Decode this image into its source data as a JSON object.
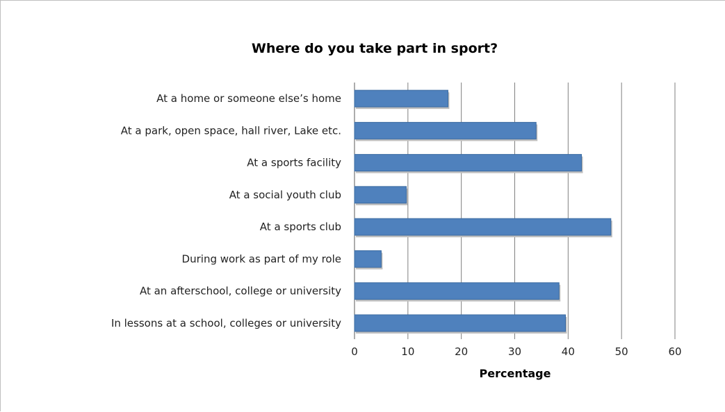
{
  "chart_data": {
    "type": "bar",
    "orientation": "horizontal",
    "title": "Where do you take part in sport?",
    "xlabel": "Percentage",
    "ylabel": "",
    "categories": [
      "At a home or someone else’s home",
      "At a park, open space, hall river, Lake etc.",
      "At a sports facility",
      "At a social youth club",
      "At a sports club",
      "During work as part of my role",
      "At an afterschool, college or university",
      "In lessons at a school, colleges or university"
    ],
    "values": [
      17.5,
      34,
      42.5,
      9.7,
      48,
      5,
      38.3,
      39.5
    ],
    "xlim": [
      0,
      60
    ],
    "xticks": [
      "0",
      "10",
      "20",
      "30",
      "40",
      "50",
      "60"
    ],
    "grid": "vertical",
    "legend": "none",
    "colors": {
      "bar": "#4f81bd",
      "bar_edge": "#3a6aa0",
      "grid": "#7f7f7f",
      "shadow": "#bfbfbf"
    }
  }
}
